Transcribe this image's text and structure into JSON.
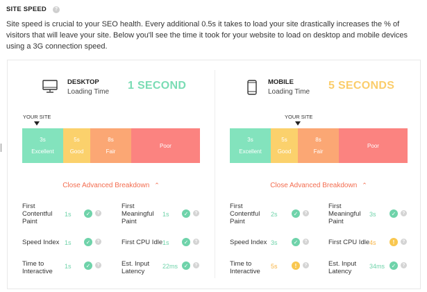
{
  "header": {
    "title": "SITE SPEED"
  },
  "description": "Site speed is crucial to your SEO health. Every additional 0.5s it takes to load your site drastically increases the % of visitors that will leave your site. Below you'll see the time it took for your website to load on desktop and mobile devices using a 3G connection speed.",
  "colors": {
    "excellent": "#83e3bd",
    "good": "#fbd16c",
    "fair": "#fba774",
    "poor": "#fb8380",
    "accent": "#f36c4f"
  },
  "icons": {
    "help": "help-icon",
    "desktop": "desktop-icon",
    "mobile": "mobile-icon",
    "check": "check-icon",
    "warning": "warning-icon",
    "chevron": "chevron-up-icon"
  },
  "desktop": {
    "name": "DESKTOP",
    "subtitle": "Loading Time",
    "time": "1 SECOND",
    "your_site": "YOUR SITE",
    "scale": [
      {
        "time": "3s",
        "label": "Excellent"
      },
      {
        "time": "5s",
        "label": "Good"
      },
      {
        "time": "8s",
        "label": "Fair"
      },
      {
        "time": "",
        "label": "Poor"
      }
    ],
    "toggle": "Close Advanced Breakdown",
    "metrics": [
      {
        "label": "First Contentful Paint",
        "value": "1s",
        "status": "good"
      },
      {
        "label": "First Meaningful Paint",
        "value": "1s",
        "status": "good"
      },
      {
        "label": "Speed Index",
        "value": "1s",
        "status": "good"
      },
      {
        "label": "First CPU Idle",
        "value": "1s",
        "status": "good"
      },
      {
        "label": "Time to Interactive",
        "value": "1s",
        "status": "good"
      },
      {
        "label": "Est. Input Latency",
        "value": "22ms",
        "status": "good"
      }
    ]
  },
  "mobile": {
    "name": "MOBILE",
    "subtitle": "Loading Time",
    "time": "5 SECONDS",
    "your_site": "YOUR SITE",
    "scale": [
      {
        "time": "3s",
        "label": "Excellent"
      },
      {
        "time": "5s",
        "label": "Good"
      },
      {
        "time": "8s",
        "label": "Fair"
      },
      {
        "time": "",
        "label": "Poor"
      }
    ],
    "toggle": "Close Advanced Breakdown",
    "metrics": [
      {
        "label": "First Contentful Paint",
        "value": "2s",
        "status": "good"
      },
      {
        "label": "First Meaningful Paint",
        "value": "3s",
        "status": "good"
      },
      {
        "label": "Speed Index",
        "value": "3s",
        "status": "good"
      },
      {
        "label": "First CPU Idle",
        "value": "4s",
        "status": "warn"
      },
      {
        "label": "Time to Interactive",
        "value": "5s",
        "status": "warn"
      },
      {
        "label": "Est. Input Latency",
        "value": "34ms",
        "status": "good"
      }
    ]
  }
}
